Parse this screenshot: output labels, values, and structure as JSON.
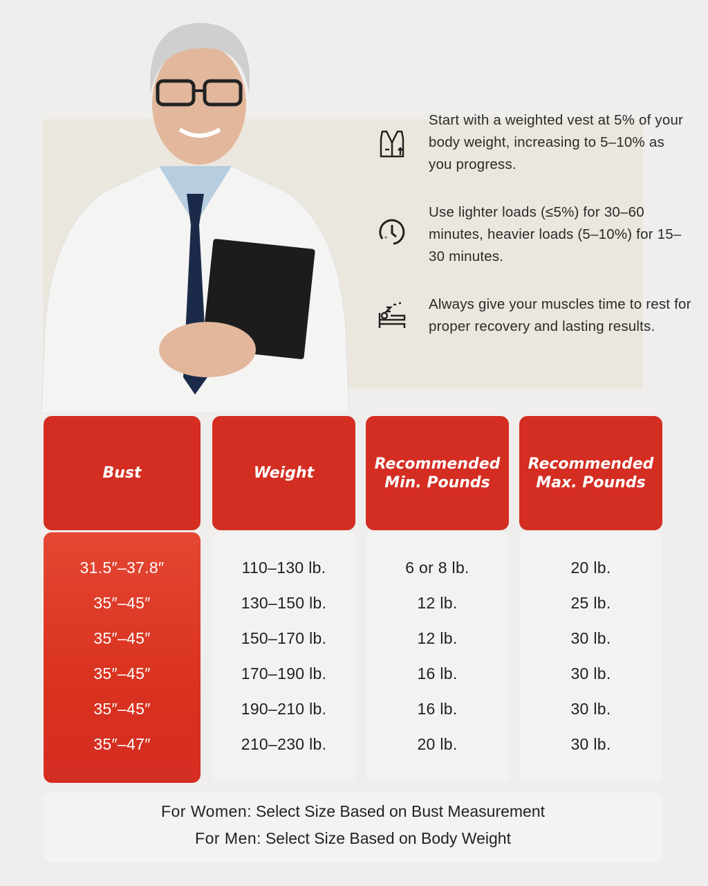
{
  "tips": [
    {
      "icon": "weighted-vest-icon",
      "text": "Start with a weighted vest at 5% of your body weight, increasing to 5–10% as you progress."
    },
    {
      "icon": "clock-icon",
      "text": "Use lighter loads (≤5%) for 30–60 minutes, heavier loads (5–10%) for 15–30 minutes."
    },
    {
      "icon": "bed-sleep-icon",
      "text": "Always give your muscles time to rest for proper recovery and lasting results."
    }
  ],
  "table": {
    "headers": [
      "Bust",
      "Weight",
      "Recommended\nMin. Pounds",
      "Recommended\nMax. Pounds"
    ],
    "columns": [
      [
        "31.5″–37.8″",
        "35″–45″",
        "35″–45″",
        "35″–45″",
        "35″–45″",
        "35″–47″"
      ],
      [
        "110–130 lb.",
        "130–150 lb.",
        "150–170 lb.",
        "170–190 lb.",
        "190–210 lb.",
        "210–230 lb."
      ],
      [
        "6 or 8 lb.",
        "12 lb.",
        "12 lb.",
        "16 lb.",
        "16 lb.",
        "20 lb."
      ],
      [
        "20 lb.",
        "25 lb.",
        "30 lb.",
        "30 lb.",
        "30 lb.",
        "30 lb."
      ]
    ]
  },
  "footer": {
    "women_label": "For Women",
    "women_text": ": Select Size Based on Bust Measurement",
    "men_label": "For Men",
    "men_text": ": Select Size Based on Body Weight"
  },
  "colors": {
    "accent": "#d42d22",
    "accent_light": "#e44733",
    "background": "#efeeec"
  }
}
